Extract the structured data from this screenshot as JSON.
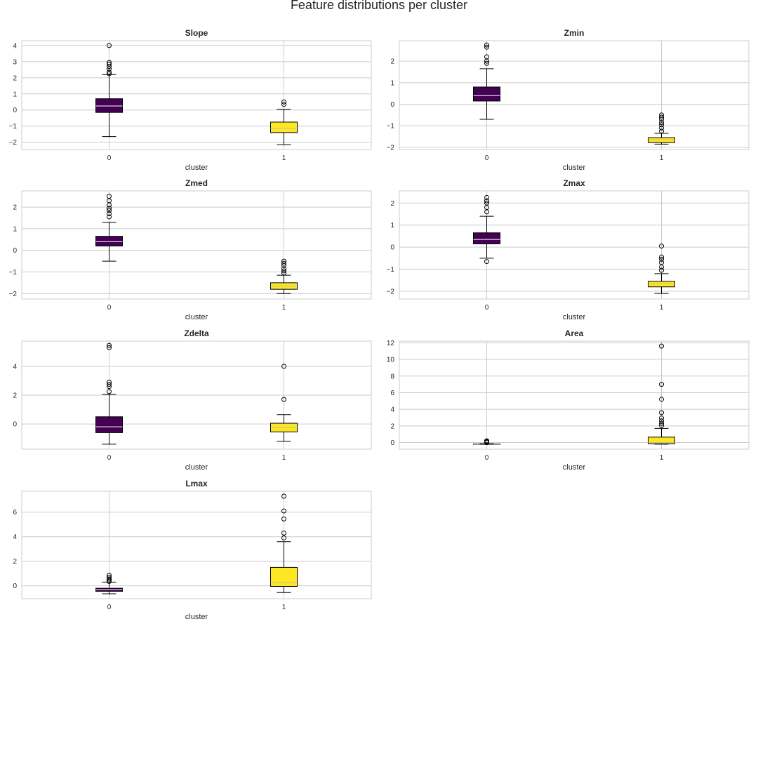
{
  "figure": {
    "title": "Feature distributions per cluster"
  },
  "colors": {
    "cluster_0": "#440154",
    "cluster_1": "#fde725",
    "grid": "#cccccc",
    "frame": "#cccccc",
    "text": "#262626"
  },
  "chart_data": [
    {
      "type": "box",
      "title": "Slope",
      "xlabel": "cluster",
      "categories": [
        "0",
        "1"
      ],
      "ylim": [
        -2.45,
        4.3
      ],
      "yticks": [
        -2,
        -1,
        0,
        1,
        2,
        3,
        4
      ],
      "boxes": [
        {
          "category": "0",
          "whislo": -1.65,
          "q1": -0.15,
          "med": 0.25,
          "q3": 0.7,
          "whishi": 2.2,
          "fliers": [
            2.25,
            2.35,
            2.55,
            2.7,
            2.85,
            2.95,
            4.0
          ]
        },
        {
          "category": "1",
          "whislo": -2.15,
          "q1": -1.4,
          "med": -1.15,
          "q3": -0.75,
          "whishi": 0.05,
          "fliers": [
            0.35,
            0.5
          ]
        }
      ]
    },
    {
      "type": "box",
      "title": "Zmin",
      "xlabel": "cluster",
      "categories": [
        "0",
        "1"
      ],
      "ylim": [
        -2.1,
        2.95
      ],
      "yticks": [
        -2,
        -1,
        0,
        1,
        2
      ],
      "boxes": [
        {
          "category": "0",
          "whislo": -0.7,
          "q1": 0.15,
          "med": 0.4,
          "q3": 0.8,
          "whishi": 1.65,
          "fliers": [
            1.9,
            2.0,
            2.2,
            2.65,
            2.75
          ]
        },
        {
          "category": "1",
          "whislo": -1.85,
          "q1": -1.78,
          "med": -1.65,
          "q3": -1.55,
          "whishi": -1.35,
          "fliers": [
            -1.25,
            -1.1,
            -0.95,
            -0.85,
            -0.7,
            -0.6,
            -0.5
          ]
        }
      ]
    },
    {
      "type": "box",
      "title": "Zmed",
      "xlabel": "cluster",
      "categories": [
        "0",
        "1"
      ],
      "ylim": [
        -2.25,
        2.75
      ],
      "yticks": [
        -2,
        -1,
        0,
        1,
        2
      ],
      "boxes": [
        {
          "category": "0",
          "whislo": -0.5,
          "q1": 0.2,
          "med": 0.4,
          "q3": 0.65,
          "whishi": 1.3,
          "fliers": [
            1.55,
            1.7,
            1.85,
            1.95,
            2.1,
            2.3,
            2.5
          ]
        },
        {
          "category": "1",
          "whislo": -2.0,
          "q1": -1.8,
          "med": -1.65,
          "q3": -1.5,
          "whishi": -1.15,
          "fliers": [
            -1.05,
            -0.95,
            -0.85,
            -0.7,
            -0.6,
            -0.5
          ]
        }
      ]
    },
    {
      "type": "box",
      "title": "Zmax",
      "xlabel": "cluster",
      "categories": [
        "0",
        "1"
      ],
      "ylim": [
        -2.35,
        2.55
      ],
      "yticks": [
        -2,
        -1,
        0,
        1,
        2
      ],
      "boxes": [
        {
          "category": "0",
          "whislo": -0.5,
          "q1": 0.15,
          "med": 0.35,
          "q3": 0.65,
          "whishi": 1.4,
          "fliers": [
            -0.65,
            1.6,
            1.8,
            2.0,
            2.1,
            2.25
          ]
        },
        {
          "category": "1",
          "whislo": -2.1,
          "q1": -1.8,
          "med": -1.65,
          "q3": -1.55,
          "whishi": -1.2,
          "fliers": [
            -1.05,
            -0.9,
            -0.7,
            -0.55,
            -0.45,
            0.05
          ]
        }
      ]
    },
    {
      "type": "box",
      "title": "Zdelta",
      "xlabel": "cluster",
      "categories": [
        "0",
        "1"
      ],
      "ylim": [
        -1.75,
        5.75
      ],
      "yticks": [
        0,
        2,
        4
      ],
      "boxes": [
        {
          "category": "0",
          "whislo": -1.4,
          "q1": -0.6,
          "med": -0.2,
          "q3": 0.5,
          "whishi": 2.05,
          "fliers": [
            2.25,
            2.6,
            2.75,
            2.9,
            5.3,
            5.45
          ]
        },
        {
          "category": "1",
          "whislo": -1.2,
          "q1": -0.55,
          "med": -0.25,
          "q3": 0.05,
          "whishi": 0.65,
          "fliers": [
            1.7,
            4.0
          ]
        }
      ]
    },
    {
      "type": "box",
      "title": "Area",
      "xlabel": "cluster",
      "categories": [
        "0",
        "1"
      ],
      "ylim": [
        -0.8,
        12.2
      ],
      "yticks": [
        0,
        2,
        4,
        6,
        8,
        10,
        12
      ],
      "boxes": [
        {
          "category": "0",
          "whislo": -0.25,
          "q1": -0.22,
          "med": -0.2,
          "q3": -0.15,
          "whishi": -0.1,
          "fliers": [
            0.0,
            0.1,
            0.15,
            0.2
          ]
        },
        {
          "category": "1",
          "whislo": -0.2,
          "q1": -0.15,
          "med": 0.0,
          "q3": 0.65,
          "whishi": 1.7,
          "fliers": [
            2.05,
            2.3,
            2.6,
            2.95,
            3.6,
            5.2,
            7.0,
            11.6
          ]
        }
      ]
    },
    {
      "type": "box",
      "title": "Lmax",
      "xlabel": "cluster",
      "categories": [
        "0",
        "1"
      ],
      "ylim": [
        -1.05,
        7.7
      ],
      "yticks": [
        0,
        2,
        4,
        6
      ],
      "boxes": [
        {
          "category": "0",
          "whislo": -0.65,
          "q1": -0.45,
          "med": -0.3,
          "q3": -0.2,
          "whishi": 0.3,
          "fliers": [
            0.35,
            0.45,
            0.55,
            0.7,
            0.85
          ]
        },
        {
          "category": "1",
          "whislo": -0.55,
          "q1": -0.05,
          "med": 0.25,
          "q3": 1.5,
          "whishi": 3.6,
          "fliers": [
            3.9,
            4.3,
            5.45,
            6.1,
            7.3
          ]
        }
      ]
    }
  ]
}
